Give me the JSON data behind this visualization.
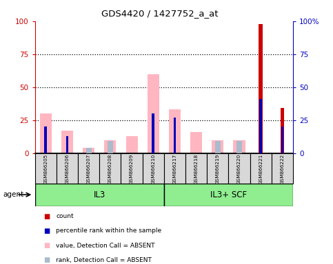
{
  "title": "GDS4420 / 1427752_a_at",
  "samples": [
    "GSM866205",
    "GSM866206",
    "GSM866207",
    "GSM866208",
    "GSM866209",
    "GSM866210",
    "GSM866217",
    "GSM866218",
    "GSM866219",
    "GSM866220",
    "GSM866221",
    "GSM866222"
  ],
  "groups": [
    {
      "label": "IL3",
      "start": 0,
      "end": 6
    },
    {
      "label": "IL3+ SCF",
      "start": 6,
      "end": 12
    }
  ],
  "count_values": [
    0,
    0,
    0,
    0,
    0,
    0,
    0,
    0,
    0,
    0,
    98,
    34
  ],
  "percentile_rank": [
    20,
    13,
    0,
    0,
    0,
    30,
    27,
    0,
    0,
    0,
    41,
    20
  ],
  "value_absent": [
    30,
    17,
    4,
    10,
    13,
    60,
    33,
    16,
    10,
    10,
    0,
    0
  ],
  "rank_absent": [
    0,
    0,
    4,
    9,
    0,
    0,
    0,
    0,
    9,
    9,
    0,
    0
  ],
  "ylim": [
    0,
    100
  ],
  "yticks": [
    0,
    25,
    50,
    75,
    100
  ],
  "ytick_labels_right": [
    "0",
    "25",
    "50",
    "75",
    "100%"
  ],
  "group_bg_light": "#90EE90",
  "group_bg_dark": "#44DD44",
  "count_color": "#CC0000",
  "percentile_color": "#0000BB",
  "value_absent_color": "#FFB6C1",
  "rank_absent_color": "#AABBCC",
  "sample_box_color": "#D8D8D8",
  "left_axis_color": "#CC0000",
  "right_axis_color": "#0000BB",
  "agent_label": "agent"
}
